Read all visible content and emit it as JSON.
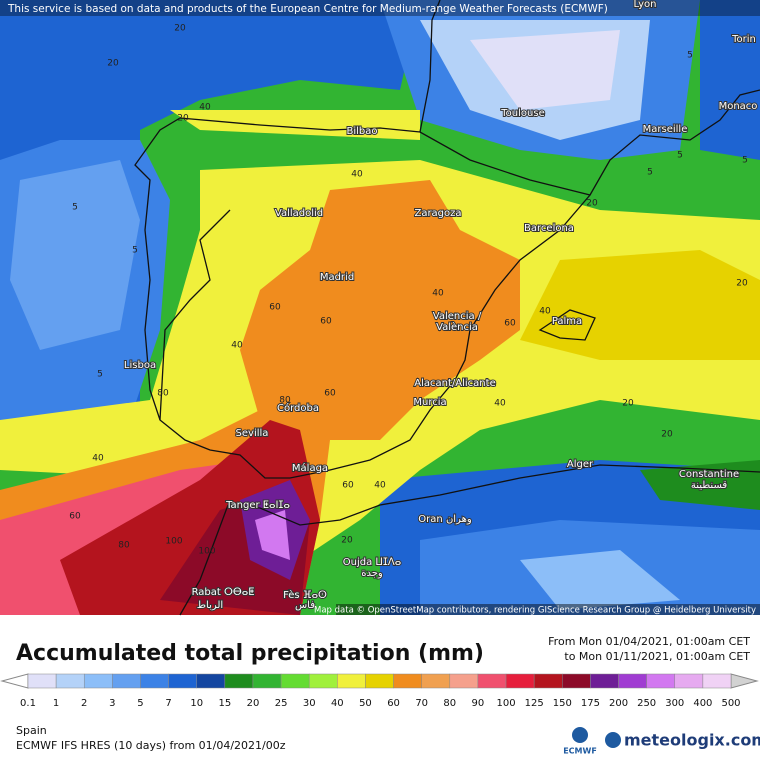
{
  "header": {
    "notice": "This service is based on data and products of the European Centre for Medium-range Weather Forecasts (ECMWF)"
  },
  "map": {
    "cities": [
      "Lyon",
      "Torin",
      "Monaco",
      "Toulouse",
      "Marseille",
      "Bilbao",
      "Valladolid",
      "Zaragoza",
      "Barcelona",
      "Madrid",
      "Valencia /",
      "València",
      "Palma",
      "Lisboa",
      "Alacant/Alicante",
      "Murcia",
      "Córdoba",
      "Sevilla",
      "Málaga",
      "Alger",
      "Constantine",
      "قسنطينة",
      "Tanger ⵟⴰⵏⵊⴰ",
      "Oran وهران",
      "Oujda ⵡⵊⴷⴰ",
      "وجدة",
      "Rabat ⵔⴱⴰⵟ",
      "الرباط",
      "Fès ⴼⴰⵙ",
      "فاس"
    ],
    "contour_labels": [
      "20",
      "20",
      "40",
      "20",
      "5",
      "5",
      "5",
      "40",
      "40",
      "60",
      "60",
      "40",
      "60",
      "40",
      "80",
      "60",
      "40",
      "20",
      "40",
      "80",
      "60",
      "80",
      "100",
      "100",
      "60",
      "40",
      "20",
      "5",
      "5",
      "20",
      "20",
      "5",
      "5",
      "20"
    ],
    "attribution": "Map data © OpenStreetMap contributors, rendering GIScience Research Group @ Heidelberg University"
  },
  "legend": {
    "title": "Accumulated total precipitation (mm)",
    "from": "From Mon 01/04/2021, 01:00am CET",
    "to": "to Mon 01/11/2021, 01:00am CET",
    "levels": [
      "0.1",
      "1",
      "2",
      "3",
      "5",
      "7",
      "10",
      "15",
      "20",
      "25",
      "30",
      "40",
      "50",
      "60",
      "70",
      "80",
      "90",
      "100",
      "125",
      "150",
      "175",
      "200",
      "250",
      "300",
      "400",
      "500"
    ],
    "colors": [
      "#ffffff",
      "#e0e0f8",
      "#b4d2f8",
      "#8cbef8",
      "#64a0f0",
      "#3c82e6",
      "#1e64d2",
      "#1446a0",
      "#1e8c1e",
      "#32b432",
      "#64dc32",
      "#a0f03c",
      "#f0f03c",
      "#e6d200",
      "#f08c1e",
      "#f0a050",
      "#f5a08c",
      "#f0506e",
      "#e61e3c",
      "#b4141e",
      "#8c0a28",
      "#6e1e96",
      "#a03cd2",
      "#d278f0",
      "#e6aaf0",
      "#f0d2f5",
      "#d2d2d2"
    ]
  },
  "footer": {
    "region": "Spain",
    "model": "ECMWF IFS HRES (10 days) from  01/04/2021/00z",
    "logo_ecmwf": "ECMWF",
    "logo_meteologix": "meteologix.com"
  }
}
